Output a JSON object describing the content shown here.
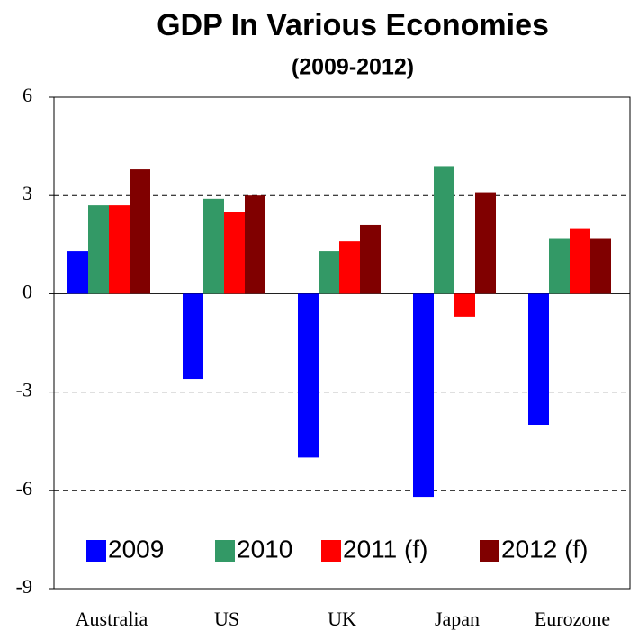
{
  "chart_data": {
    "type": "bar",
    "title": "GDP In Various Economies",
    "subtitle": "(2009-2012)",
    "categories": [
      "Australia",
      "US",
      "UK",
      "Japan",
      "Eurozone"
    ],
    "series": [
      {
        "name": "2009",
        "color": "#0000ff",
        "values": [
          1.3,
          -2.6,
          -5.0,
          -6.2,
          -4.0
        ]
      },
      {
        "name": "2010",
        "color": "#339966",
        "values": [
          2.7,
          2.9,
          1.3,
          3.9,
          1.7
        ]
      },
      {
        "name": "2011 (f)",
        "color": "#ff0000",
        "values": [
          2.7,
          2.5,
          1.6,
          -0.7,
          2.0
        ]
      },
      {
        "name": "2012 (f)",
        "color": "#800000",
        "values": [
          3.8,
          3.0,
          2.1,
          3.1,
          1.7
        ]
      }
    ],
    "ylim": [
      -9,
      6
    ],
    "yticks": [
      -9,
      -6,
      -3,
      0,
      3,
      6
    ],
    "grid": true,
    "legend": "lower center"
  }
}
